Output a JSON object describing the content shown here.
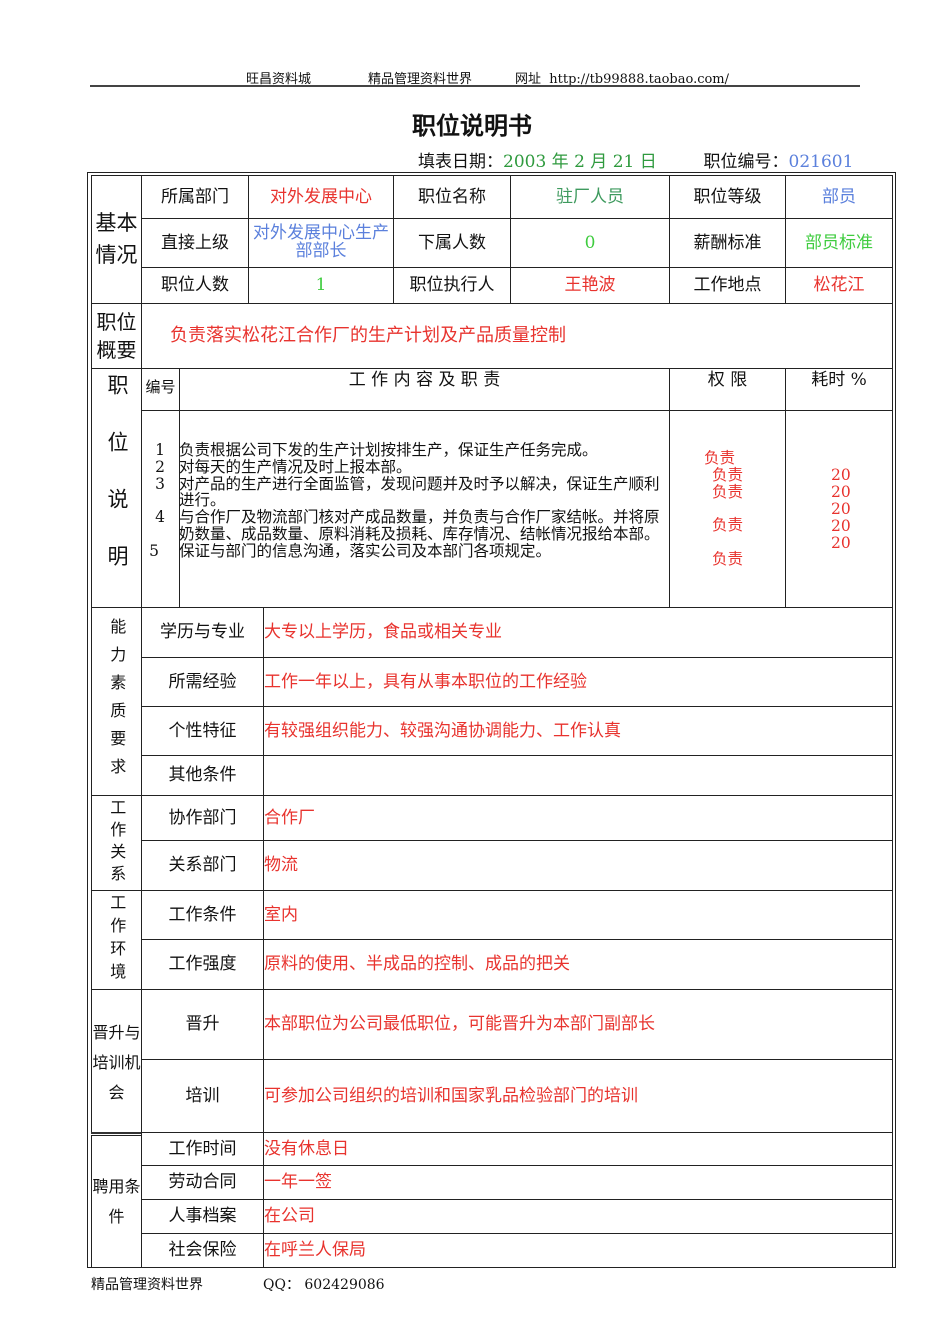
{
  "header": {
    "left": "旺昌资料城",
    "middle": "精品管理资料世界",
    "url_label": "网址",
    "url": "http://tb99888.taobao.com/"
  },
  "title": "职位说明书",
  "meta": {
    "date_label": "填表日期：",
    "date": "2003 年 2 月 21 日",
    "code_label": "职位编号：",
    "code": "021601"
  },
  "basic": {
    "section": "基本情况",
    "dept_label": "所属部门",
    "dept": "对外发展中心",
    "pos_label": "职位名称",
    "pos": "驻厂人员",
    "level_label": "职位等级",
    "level": "部员",
    "boss_label": "直接上级",
    "boss": "对外发展中心生产部部长",
    "sub_label": "下属人数",
    "sub": "0",
    "pay_label": "薪酬标准",
    "pay": "部员标准",
    "count_label": "职位人数",
    "count": "1",
    "exec_label": "职位执行人",
    "exec": "王艳波",
    "place_label": "工作地点",
    "place": "松花江"
  },
  "summary": {
    "label": "职位概要",
    "text": "负责落实松花江合作厂的生产计划及产品质量控制"
  },
  "duties": {
    "section": "职位说明",
    "num_header": "编号",
    "content_header": "工 作 内 容 及 职 责",
    "auth_header": "权 限",
    "time_header": "耗时 %",
    "items": [
      {
        "no": "1",
        "text": "负责根据公司下发的生产计划按排生产，保证生产任务完成。",
        "auth": "负责",
        "time": "20"
      },
      {
        "no": "2",
        "text": "对每天的生产情况及时上报本部。",
        "auth": "负责",
        "time": "20"
      },
      {
        "no": "3",
        "text": "对产品的生产进行全面监管，发现问题并及时予以解决，保证生产顺利进行。",
        "auth": "负责",
        "time": "20"
      },
      {
        "no": "4",
        "text": "与合作厂及物流部门核对产成品数量，并负责与合作厂家结帐。并将原奶数量、成品数量、原料消耗及损耗、库存情况、结帐情况报给本部。",
        "auth": "负责",
        "time": "20"
      },
      {
        "no": "5",
        "text": "保证与部门的信息沟通，落实公司及本部门各项规定。",
        "auth": "负责",
        "time": "20"
      }
    ]
  },
  "ability": {
    "section": "能力素质要求",
    "rows": [
      {
        "label": "学历与专业",
        "value": "大专以上学历，食品或相关专业"
      },
      {
        "label": "所需经验",
        "value": "工作一年以上，具有从事本职位的工作经验"
      },
      {
        "label": "个性特征",
        "value": "有较强组织能力、较强沟通协调能力、工作认真"
      },
      {
        "label": "其他条件",
        "value": ""
      }
    ]
  },
  "relations": {
    "section": "工作关系",
    "rows": [
      {
        "label": "协作部门",
        "value": "合作厂"
      },
      {
        "label": "关系部门",
        "value": "物流"
      }
    ]
  },
  "environment": {
    "section": "工作环境",
    "rows": [
      {
        "label": "工作条件",
        "value": "室内"
      },
      {
        "label": "工作强度",
        "value": "原料的使用、半成品的控制、成品的把关"
      }
    ]
  },
  "promotion": {
    "section": "晋升与培训机会",
    "rows": [
      {
        "label": "晋升",
        "value": "本部职位为公司最低职位，可能晋升为本部门副部长"
      },
      {
        "label": "培训",
        "value": "可参加公司组织的培训和国家乳品检验部门的培训"
      }
    ]
  },
  "hiring": {
    "section": "聘用条件",
    "rows": [
      {
        "label": "工作时间",
        "value": "没有休息日"
      },
      {
        "label": "劳动合同",
        "value": "一年一签"
      },
      {
        "label": "人事档案",
        "value": "在公司"
      },
      {
        "label": "社会保险",
        "value": "在呼兰人保局"
      }
    ]
  },
  "footer": {
    "left": "精品管理资料世界",
    "qq": "QQ：  602429086"
  },
  "colors": {
    "red": "#e8332e",
    "green": "#2f9a3e",
    "blue": "#5b80dc"
  }
}
